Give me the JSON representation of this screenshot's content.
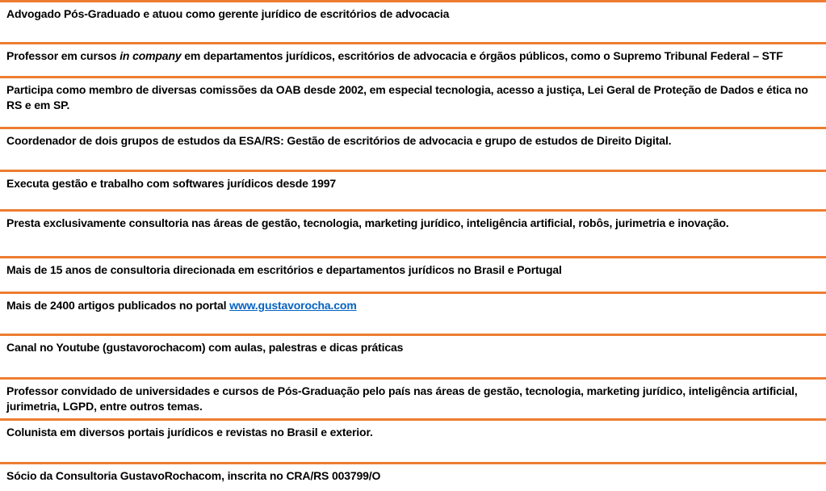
{
  "page": {
    "background": "#FFFFFF",
    "accent_orange": "#ED7D31",
    "text_color": "#000000",
    "link_color": "#0563C1"
  },
  "table": {
    "rows": [
      {
        "name": "row-advogado",
        "segments": [
          {
            "style": "normal",
            "text": "Advogado Pós-Graduado e atuou como gerente jurídico de escritórios de advocacia"
          }
        ]
      },
      {
        "name": "row-professor-in-company",
        "segments": [
          {
            "style": "normal",
            "text": "Professor em cursos "
          },
          {
            "style": "italic",
            "text": "in company"
          },
          {
            "style": "normal",
            "text": " em departamentos jurídicos, escritórios de advocacia e órgãos públicos, como o Supremo Tribunal Federal – STF"
          }
        ]
      },
      {
        "name": "row-comissoes-oab",
        "segments": [
          {
            "style": "normal",
            "text": "Participa como membro de diversas comissões da OAB desde 2002, em especial tecnologia, acesso a justiça, Lei Geral de Proteção de Dados e ética no RS e em SP."
          }
        ]
      },
      {
        "name": "row-coordenador-esa",
        "segments": [
          {
            "style": "normal",
            "text": "Coordenador de dois grupos de estudos da ESA/RS: Gestão de escritórios de advocacia e grupo de estudos de Direito Digital."
          }
        ]
      },
      {
        "name": "row-softwares-juridicos",
        "segments": [
          {
            "style": "normal",
            "text": "Executa gestão e trabalho com softwares jurídicos desde 1997"
          }
        ]
      },
      {
        "name": "row-consultoria-areas",
        "segments": [
          {
            "style": "normal",
            "text": "Presta exclusivamente consultoria nas áreas de gestão, tecnologia, marketing jurídico, inteligência artificial, robôs, jurimetria e inovação."
          }
        ]
      },
      {
        "name": "row-15-anos-consultoria",
        "segments": [
          {
            "style": "normal",
            "text": "Mais de 15 anos de consultoria direcionada em escritórios e departamentos jurídicos no Brasil e Portugal"
          }
        ]
      },
      {
        "name": "row-artigos-portal",
        "segments": [
          {
            "style": "normal",
            "text": "Mais de 2400 artigos publicados no portal "
          },
          {
            "style": "link",
            "text": "www.gustavorocha.com"
          }
        ]
      },
      {
        "name": "row-canal-youtube",
        "segments": [
          {
            "style": "normal",
            "text": "Canal no Youtube (gustavorochacom) com aulas, palestras e dicas práticas"
          }
        ]
      },
      {
        "name": "row-professor-convidado",
        "segments": [
          {
            "style": "normal",
            "text": "Professor convidado de universidades e cursos de Pós-Graduação pelo país nas áreas de gestão, tecnologia, marketing jurídico, inteligência artificial, jurimetria, LGPD, entre outros temas."
          }
        ]
      },
      {
        "name": "row-colunista",
        "segments": [
          {
            "style": "normal",
            "text": "Colunista em diversos portais jurídicos e revistas no Brasil e exterior."
          }
        ]
      },
      {
        "name": "row-socio-consultoria",
        "segments": [
          {
            "style": "normal",
            "text": "Sócio da Consultoria GustavoRochacom, inscrita no CRA/RS 003799/O"
          }
        ]
      }
    ]
  }
}
